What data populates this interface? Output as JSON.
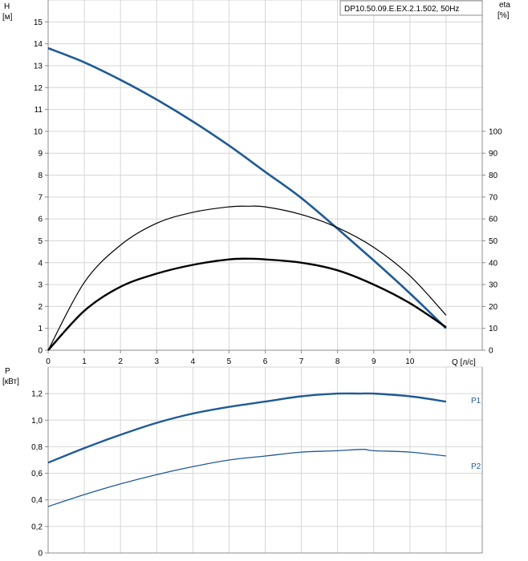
{
  "chart_data": [
    {
      "type": "line",
      "title": "DP10.50.09.E.EX.2.1.502, 50Hz",
      "y_left_label": [
        "H",
        "[м]"
      ],
      "y_right_label": [
        "eta",
        "[%]"
      ],
      "x_label": "Q [л/с]",
      "xlim": [
        0,
        12
      ],
      "ylim_left": [
        0,
        16
      ],
      "ylim_right": [
        0,
        160
      ],
      "x_ticks": [
        "0",
        "1",
        "2",
        "3",
        "4",
        "5",
        "6",
        "7",
        "8",
        "9",
        "10"
      ],
      "y_left_ticks": [
        "0",
        "1",
        "2",
        "3",
        "4",
        "5",
        "6",
        "7",
        "8",
        "9",
        "10",
        "11",
        "12",
        "13",
        "14",
        "15"
      ],
      "y_right_ticks": [
        "0",
        "10",
        "20",
        "30",
        "40",
        "50",
        "60",
        "70",
        "80",
        "90",
        "100"
      ],
      "grid": true,
      "series": [
        {
          "color": "#1f5a96",
          "axis": "left",
          "x": [
            0,
            1,
            2,
            3,
            4,
            5,
            6,
            7,
            8,
            9,
            10,
            11
          ],
          "values": [
            13.8,
            13.15,
            12.35,
            11.45,
            10.45,
            9.35,
            8.15,
            6.95,
            5.55,
            4.1,
            2.6,
            1.0
          ]
        },
        {
          "color": "#000000",
          "axis": "right",
          "x": [
            0,
            1,
            2,
            3,
            4,
            5,
            5.5,
            6,
            7,
            8,
            9,
            10,
            11
          ],
          "values": [
            0,
            31,
            48,
            58,
            63,
            65.5,
            65.8,
            65.5,
            62,
            56,
            47,
            34,
            16
          ]
        },
        {
          "color": "#000000",
          "axis": "left",
          "x": [
            0,
            1,
            2,
            3,
            4,
            5,
            5.6,
            6,
            7,
            8,
            9,
            10,
            11
          ],
          "values": [
            0,
            1.8,
            2.9,
            3.5,
            3.9,
            4.15,
            4.18,
            4.15,
            4.0,
            3.65,
            3.0,
            2.15,
            1.05
          ]
        }
      ]
    },
    {
      "type": "line",
      "y_label": [
        "P",
        "[кВт]"
      ],
      "xlim": [
        0,
        12
      ],
      "ylim": [
        0,
        1.4
      ],
      "y_ticks": [
        "0",
        "0,2",
        "0,4",
        "0,6",
        "0,8",
        "1,0",
        "1,2"
      ],
      "grid": true,
      "series": [
        {
          "name": "P1",
          "color": "#1f5a96",
          "x": [
            0,
            1,
            2,
            3,
            4,
            5,
            6,
            7,
            8,
            8.6,
            9,
            10,
            11
          ],
          "values": [
            0.68,
            0.79,
            0.89,
            0.98,
            1.05,
            1.1,
            1.14,
            1.18,
            1.2,
            1.2,
            1.2,
            1.18,
            1.14
          ]
        },
        {
          "name": "P2",
          "color": "#1f5a96",
          "x": [
            0,
            1,
            2,
            3,
            4,
            5,
            6,
            7,
            8,
            8.7,
            9,
            10,
            11
          ],
          "values": [
            0.35,
            0.44,
            0.52,
            0.59,
            0.65,
            0.7,
            0.73,
            0.76,
            0.77,
            0.78,
            0.77,
            0.76,
            0.73
          ]
        }
      ]
    }
  ]
}
